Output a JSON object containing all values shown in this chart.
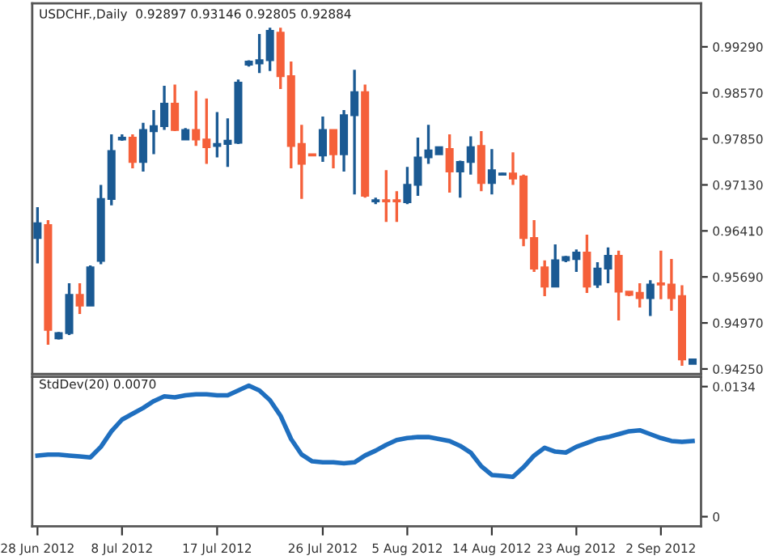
{
  "chart_data": [
    {
      "type": "candlestick",
      "title": "USDCHF.,Daily  0.92897 0.93146 0.92805 0.92884",
      "categories": [
        null,
        null,
        null,
        null,
        null,
        null,
        null,
        null,
        null,
        null,
        null,
        null,
        null,
        null,
        null,
        null,
        null,
        null,
        null,
        null,
        null,
        null,
        null,
        null,
        null,
        null,
        null,
        null,
        null,
        null,
        null,
        null,
        null,
        null,
        null,
        null,
        null,
        null,
        null,
        null,
        null,
        null,
        null,
        null,
        null,
        null,
        null,
        null,
        null,
        null,
        null,
        null,
        null,
        null,
        null,
        null,
        null,
        null,
        null,
        null,
        null,
        null,
        null
      ],
      "ohlc": [
        [
          0.963,
          0.9678,
          0.959,
          0.9653
        ],
        [
          0.965,
          0.9658,
          0.9463,
          0.9486
        ],
        [
          0.9473,
          0.9483,
          0.9471,
          0.9481
        ],
        [
          0.9481,
          0.9559,
          0.9478,
          0.9541
        ],
        [
          0.9541,
          0.9559,
          0.9511,
          0.9524
        ],
        [
          0.9524,
          0.9587,
          0.9524,
          0.9584
        ],
        [
          0.9594,
          0.9713,
          0.9589,
          0.9691
        ],
        [
          0.9691,
          0.9792,
          0.9681,
          0.9766
        ],
        [
          0.9784,
          0.9792,
          0.9782,
          0.9787
        ],
        [
          0.9787,
          0.9792,
          0.9739,
          0.9749
        ],
        [
          0.9749,
          0.981,
          0.9734,
          0.9799
        ],
        [
          0.9797,
          0.983,
          0.9761,
          0.9805
        ],
        [
          0.9805,
          0.9868,
          0.9799,
          0.984
        ],
        [
          0.984,
          0.987,
          0.9797,
          0.9799
        ],
        [
          0.9784,
          0.9802,
          0.9784,
          0.9799
        ],
        [
          0.9799,
          0.986,
          0.9774,
          0.9784
        ],
        [
          0.9784,
          0.9848,
          0.9746,
          0.9772
        ],
        [
          0.9774,
          0.9827,
          0.9756,
          0.9777
        ],
        [
          0.9777,
          0.9817,
          0.9741,
          0.9782
        ],
        [
          0.9779,
          0.9878,
          0.9777,
          0.9873
        ],
        [
          0.9901,
          0.9908,
          0.9898,
          0.9906
        ],
        [
          0.9903,
          0.9949,
          0.9888,
          0.9908
        ],
        [
          0.9908,
          0.9959,
          0.9891,
          0.9954
        ],
        [
          0.9951,
          0.9959,
          0.9863,
          0.9883
        ],
        [
          0.9883,
          0.9906,
          0.9739,
          0.9774
        ],
        [
          0.9777,
          0.9807,
          0.9691,
          0.9746
        ],
        [
          0.9761,
          0.9761,
          0.9759,
          0.9759
        ],
        [
          0.9759,
          0.982,
          0.9749,
          0.9799
        ],
        [
          0.9799,
          0.9799,
          0.9739,
          0.9761
        ],
        [
          0.9761,
          0.983,
          0.9734,
          0.9822
        ],
        [
          0.9822,
          0.9893,
          0.9698,
          0.9858
        ],
        [
          0.9858,
          0.987,
          0.9693,
          0.9696
        ],
        [
          0.9687,
          0.9693,
          0.9683,
          0.9689
        ],
        [
          0.9689,
          0.9736,
          0.9655,
          0.9687
        ],
        [
          0.9689,
          0.9703,
          0.9655,
          0.9687
        ],
        [
          0.9686,
          0.9741,
          0.9683,
          0.9713
        ],
        [
          0.9713,
          0.9787,
          0.9696,
          0.9756
        ],
        [
          0.9756,
          0.9807,
          0.9746,
          0.9767
        ],
        [
          0.9761,
          0.9772,
          0.9761,
          0.9772
        ],
        [
          0.9769,
          0.9792,
          0.9701,
          0.9734
        ],
        [
          0.9734,
          0.9751,
          0.9693,
          0.9749
        ],
        [
          0.9749,
          0.9789,
          0.9729,
          0.9772
        ],
        [
          0.9774,
          0.9797,
          0.9703,
          0.9716
        ],
        [
          0.9716,
          0.9769,
          0.9698,
          0.9736
        ],
        [
          0.9729,
          0.9732,
          0.9728,
          0.9731
        ],
        [
          0.9731,
          0.9764,
          0.9713,
          0.9723
        ],
        [
          0.9726,
          0.9729,
          0.9617,
          0.963
        ],
        [
          0.963,
          0.9658,
          0.9577,
          0.9582
        ],
        [
          0.9584,
          0.9595,
          0.9539,
          0.9554
        ],
        [
          0.9554,
          0.962,
          0.9554,
          0.9595
        ],
        [
          0.9595,
          0.9602,
          0.9592,
          0.96
        ],
        [
          0.9597,
          0.9612,
          0.9577,
          0.9607
        ],
        [
          0.9607,
          0.9635,
          0.9544,
          0.9554
        ],
        [
          0.9557,
          0.9592,
          0.9552,
          0.9582
        ],
        [
          0.9582,
          0.9615,
          0.9559,
          0.9602
        ],
        [
          0.9602,
          0.961,
          0.9501,
          0.9546
        ],
        [
          0.9546,
          0.9546,
          0.9539,
          0.9541
        ],
        [
          0.9544,
          0.9559,
          0.9521,
          0.9536
        ],
        [
          0.9536,
          0.9564,
          0.9508,
          0.9557
        ],
        [
          0.9559,
          0.961,
          0.9534,
          0.9557
        ],
        [
          0.9557,
          0.9597,
          0.9516,
          0.9536
        ],
        [
          0.9539,
          0.9556,
          0.943,
          0.944
        ],
        [
          0.9433,
          0.944,
          0.9433,
          0.944
        ]
      ],
      "colors": [
        "#1b5a93",
        "#f5603a",
        "#1b5a93",
        "#1b5a93",
        "#f5603a",
        "#1b5a93",
        "#1b5a93",
        "#1b5a93",
        "#1b5a93",
        "#f5603a",
        "#1b5a93",
        "#1b5a93",
        "#1b5a93",
        "#f5603a",
        "#1b5a93",
        "#f5603a",
        "#f5603a",
        "#1b5a93",
        "#1b5a93",
        "#1b5a93",
        "#1b5a93",
        "#1b5a93",
        "#1b5a93",
        "#f5603a",
        "#f5603a",
        "#f5603a",
        "#f5603a",
        "#1b5a93",
        "#f5603a",
        "#1b5a93",
        "#1b5a93",
        "#f5603a",
        "#1b5a93",
        "#f5603a",
        "#f5603a",
        "#1b5a93",
        "#1b5a93",
        "#1b5a93",
        "#1b5a93",
        "#f5603a",
        "#1b5a93",
        "#1b5a93",
        "#f5603a",
        "#1b5a93",
        "#1b5a93",
        "#f5603a",
        "#f5603a",
        "#f5603a",
        "#f5603a",
        "#1b5a93",
        "#1b5a93",
        "#1b5a93",
        "#f5603a",
        "#1b5a93",
        "#1b5a93",
        "#f5603a",
        "#f5603a",
        "#f5603a",
        "#1b5a93",
        "#f5603a",
        "#f5603a",
        "#f5603a",
        "#1b5a93"
      ],
      "ylim": [
        0.9417,
        0.9997
      ],
      "yticks": [
        {
          "value": 0.9929,
          "label": "0.99290"
        },
        {
          "value": 0.9857,
          "label": "0.98570"
        },
        {
          "value": 0.9785,
          "label": "0.97850"
        },
        {
          "value": 0.9713,
          "label": "0.97130"
        },
        {
          "value": 0.9641,
          "label": "0.96410"
        },
        {
          "value": 0.9569,
          "label": "0.95690"
        },
        {
          "value": 0.9497,
          "label": "0.94970"
        },
        {
          "value": 0.9425,
          "label": "0.94250"
        }
      ],
      "tick_labels": "y",
      "grid": false,
      "legend": false
    },
    {
      "type": "line",
      "title": "StdDev(20) 0.0070",
      "categories": [
        "28 Jun 2012",
        null,
        null,
        null,
        null,
        null,
        null,
        null,
        "8 Jul 2012",
        null,
        null,
        null,
        null,
        null,
        null,
        null,
        null,
        "17 Jul 2012",
        null,
        null,
        null,
        null,
        null,
        null,
        null,
        null,
        null,
        "26 Jul 2012",
        null,
        null,
        null,
        null,
        null,
        null,
        null,
        "5 Aug 2012",
        null,
        null,
        null,
        null,
        null,
        null,
        null,
        "14 Aug 2012",
        null,
        null,
        null,
        null,
        null,
        null,
        null,
        "23 Aug 2012",
        null,
        null,
        null,
        null,
        null,
        null,
        null,
        "2 Sep 2012",
        null,
        null,
        null
      ],
      "series": [
        {
          "color": "#1f6fbf",
          "values": [
            0.0063,
            0.0064,
            0.0064,
            0.0063,
            0.0062,
            0.0061,
            0.0072,
            0.0088,
            0.01,
            0.0106,
            0.0112,
            0.0119,
            0.0124,
            0.0123,
            0.0125,
            0.0126,
            0.0126,
            0.0125,
            0.0125,
            0.013,
            0.0135,
            0.013,
            0.012,
            0.0104,
            0.008,
            0.0064,
            0.0057,
            0.0056,
            0.0056,
            0.0055,
            0.0056,
            0.0063,
            0.0068,
            0.0074,
            0.0079,
            0.0081,
            0.0082,
            0.0082,
            0.008,
            0.0078,
            0.0073,
            0.0066,
            0.0052,
            0.0043,
            0.0042,
            0.0041,
            0.0051,
            0.0063,
            0.0071,
            0.0067,
            0.0066,
            0.0072,
            0.0076,
            0.008,
            0.0082,
            0.0085,
            0.0088,
            0.0089,
            0.0085,
            0.0081,
            0.0078,
            0.0077,
            0.0078
          ]
        }
      ],
      "ylim": [
        -0.001,
        0.0144
      ],
      "yticks": [
        0.0134,
        0
      ],
      "marker": "none",
      "line_style": "solid",
      "grid": false,
      "legend": false
    }
  ]
}
